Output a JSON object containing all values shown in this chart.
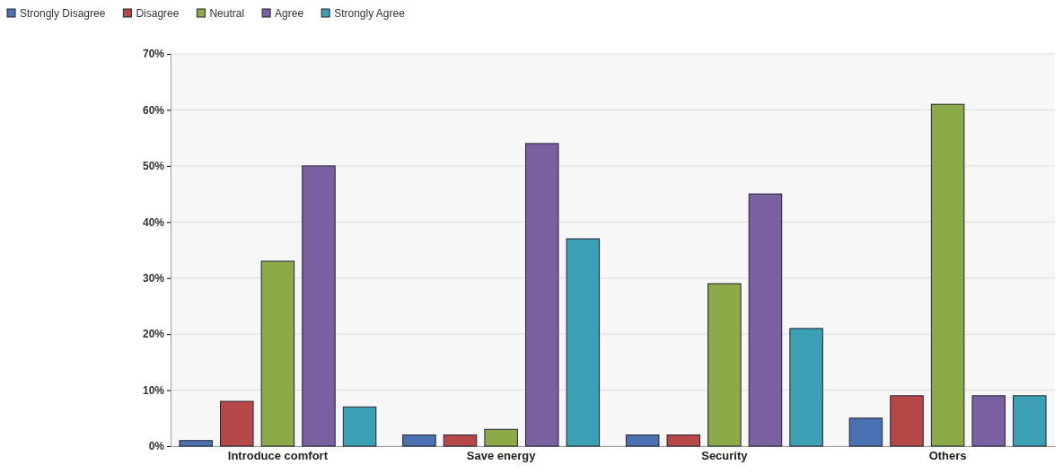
{
  "chart_data": {
    "type": "bar",
    "categories": [
      "Introduce comfort",
      "Save energy",
      "Security",
      "Others"
    ],
    "series": [
      {
        "name": "Strongly Disagree",
        "color": "#4a72b0",
        "values": [
          1,
          2,
          2,
          5
        ]
      },
      {
        "name": "Disagree",
        "color": "#b64848",
        "values": [
          8,
          2,
          2,
          9
        ]
      },
      {
        "name": "Neutral",
        "color": "#8cab48",
        "values": [
          33,
          3,
          29,
          61
        ]
      },
      {
        "name": "Agree",
        "color": "#7a60a0",
        "values": [
          50,
          54,
          45,
          9
        ]
      },
      {
        "name": "Strongly Agree",
        "color": "#3ca0b4",
        "values": [
          7,
          37,
          21,
          9
        ]
      }
    ],
    "ylim": [
      0,
      70
    ],
    "yticks": [
      {
        "value": 0,
        "label": "0%"
      },
      {
        "value": 10,
        "label": "10%"
      },
      {
        "value": 20,
        "label": "20%"
      },
      {
        "value": 30,
        "label": "30%"
      },
      {
        "value": 40,
        "label": "40%"
      },
      {
        "value": 50,
        "label": "50%"
      },
      {
        "value": 60,
        "label": "60%"
      },
      {
        "value": 70,
        "label": "70%"
      }
    ],
    "grid": "y",
    "legend": "top left"
  }
}
